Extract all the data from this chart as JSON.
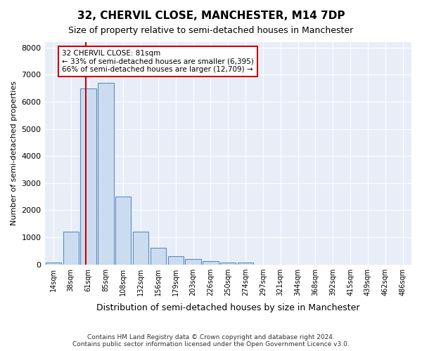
{
  "title": "32, CHERVIL CLOSE, MANCHESTER, M14 7DP",
  "subtitle": "Size of property relative to semi-detached houses in Manchester",
  "xlabel": "Distribution of semi-detached houses by size in Manchester",
  "ylabel": "Number of semi-detached properties",
  "footer_line1": "Contains HM Land Registry data © Crown copyright and database right 2024.",
  "footer_line2": "Contains public sector information licensed under the Open Government Licence v3.0.",
  "property_label": "32 CHERVIL CLOSE: 81sqm",
  "pct_smaller": 33,
  "pct_larger": 66,
  "count_smaller": 6395,
  "count_larger": 12709,
  "bar_color": "#ccdcf0",
  "bar_edge_color": "#5b8dbf",
  "red_line_color": "#cc0000",
  "annotation_box_edge": "#cc0000",
  "background_color": "#e8eef8",
  "bin_labels": [
    "14sqm",
    "38sqm",
    "61sqm",
    "85sqm",
    "108sqm",
    "132sqm",
    "156sqm",
    "179sqm",
    "203sqm",
    "226sqm",
    "250sqm",
    "274sqm",
    "297sqm",
    "321sqm",
    "344sqm",
    "368sqm",
    "392sqm",
    "415sqm",
    "439sqm",
    "462sqm",
    "486sqm"
  ],
  "bin_values": [
    60,
    1200,
    6500,
    6700,
    2500,
    1200,
    600,
    300,
    200,
    130,
    80,
    70,
    0,
    0,
    0,
    0,
    0,
    0,
    0,
    0,
    0
  ],
  "ylim": [
    0,
    8200
  ],
  "yticks": [
    0,
    1000,
    2000,
    3000,
    4000,
    5000,
    6000,
    7000,
    8000
  ],
  "red_line_x": 1.85
}
